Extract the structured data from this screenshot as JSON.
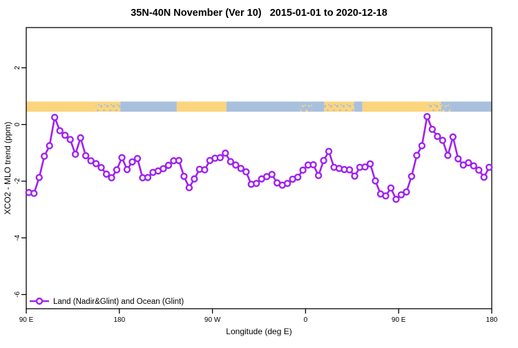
{
  "chart_data": {
    "type": "line",
    "title": "35N-40N November (Ver 10)   2015-01-01 to 2020-12-18",
    "xlabel": "Longitude (deg E)",
    "ylabel": "XCO2 - MLO trend (ppm)",
    "grid": false,
    "xlim": [
      90,
      540
    ],
    "ylim": [
      -6.5,
      3.42
    ],
    "x_ticks": [
      {
        "value": 90,
        "label": "90 E"
      },
      {
        "value": 180,
        "label": "180"
      },
      {
        "value": 270,
        "label": "90 W"
      },
      {
        "value": 360,
        "label": "0"
      },
      {
        "value": 450,
        "label": "90 E"
      },
      {
        "value": 540,
        "label": "180"
      }
    ],
    "y_ticks": [
      {
        "value": 2,
        "label": "2"
      },
      {
        "value": 0,
        "label": "0"
      },
      {
        "value": -2,
        "label": "-2"
      },
      {
        "value": -4,
        "label": "-4"
      },
      {
        "value": -6,
        "label": "-6"
      }
    ],
    "legend": {
      "label": "Land (Nadir&Glint) and Ocean (Glint)",
      "position": "bottom-left",
      "marker": "open-circle"
    },
    "colors": {
      "series": "#A020F0",
      "band_land": "#FBD57E",
      "band_ocean": "#A9C0DD",
      "axis": "#000000"
    },
    "surface_band": {
      "v_top": 0.81,
      "v_bottom": 0.45,
      "segments": [
        {
          "from": 90,
          "to": 157,
          "type": "land"
        },
        {
          "from": 157,
          "to": 181,
          "type": "mixed_land"
        },
        {
          "from": 181,
          "to": 235.5,
          "type": "ocean"
        },
        {
          "from": 235.5,
          "to": 283.5,
          "type": "land"
        },
        {
          "from": 283.5,
          "to": 355,
          "type": "ocean"
        },
        {
          "from": 355,
          "to": 366,
          "type": "mixed_ocean"
        },
        {
          "from": 366,
          "to": 378,
          "type": "ocean"
        },
        {
          "from": 378,
          "to": 407,
          "type": "mixed_land"
        },
        {
          "from": 407,
          "to": 415,
          "type": "ocean"
        },
        {
          "from": 415,
          "to": 478.5,
          "type": "land"
        },
        {
          "from": 478.5,
          "to": 491,
          "type": "mixed_land"
        },
        {
          "from": 491,
          "to": 500,
          "type": "mixed_ocean"
        },
        {
          "from": 500,
          "to": 540,
          "type": "ocean"
        }
      ]
    },
    "series": [
      {
        "name": "Land (Nadir&Glint) and Ocean (Glint)",
        "color": "#A020F0",
        "x": [
          92.5,
          97.5,
          102.5,
          107.5,
          112.5,
          117.5,
          122.5,
          127.5,
          132.5,
          137.5,
          142.5,
          147.5,
          152.5,
          157.5,
          162.5,
          167.5,
          172.5,
          177.5,
          182.5,
          187.5,
          192.5,
          197.5,
          202.5,
          207.5,
          212.5,
          217.5,
          222.5,
          227.5,
          232.5,
          237.5,
          242.5,
          247.5,
          252.5,
          257.5,
          262.5,
          267.5,
          272.5,
          277.5,
          282.5,
          287.5,
          292.5,
          297.5,
          302.5,
          307.5,
          312.5,
          317.5,
          322.5,
          327.5,
          332.5,
          337.5,
          342.5,
          347.5,
          352.5,
          357.5,
          362.5,
          367.5,
          372.5,
          377.5,
          382.5,
          387.5,
          392.5,
          397.5,
          402.5,
          407.5,
          412.5,
          417.5,
          422.5,
          427.5,
          432.5,
          437.5,
          442.5,
          447.5,
          452.5,
          457.5,
          462.5,
          467.5,
          472.5,
          477.5,
          482.5,
          487.5,
          492.5,
          497.5,
          502.5,
          507.5,
          512.5,
          517.5,
          522.5,
          527.5,
          532.5,
          537.5
        ],
        "values": [
          -2.4,
          -2.43,
          -1.87,
          -1.12,
          -0.75,
          0.25,
          -0.22,
          -0.38,
          -0.53,
          -1.05,
          -0.47,
          -1.1,
          -1.28,
          -1.38,
          -1.52,
          -1.75,
          -1.88,
          -1.6,
          -1.17,
          -1.59,
          -1.32,
          -1.2,
          -1.88,
          -1.87,
          -1.69,
          -1.64,
          -1.56,
          -1.44,
          -1.28,
          -1.27,
          -1.83,
          -2.23,
          -1.92,
          -1.58,
          -1.6,
          -1.27,
          -1.19,
          -1.17,
          -1.01,
          -1.31,
          -1.43,
          -1.55,
          -1.67,
          -2.11,
          -2.08,
          -1.92,
          -1.84,
          -1.76,
          -2.06,
          -2.14,
          -2.08,
          -1.93,
          -1.86,
          -1.61,
          -1.43,
          -1.42,
          -1.8,
          -1.27,
          -0.95,
          -1.51,
          -1.55,
          -1.59,
          -1.6,
          -1.82,
          -1.51,
          -1.5,
          -1.39,
          -1.99,
          -2.45,
          -2.52,
          -2.24,
          -2.64,
          -2.48,
          -2.38,
          -1.83,
          -1.09,
          -0.75,
          0.28,
          -0.17,
          -0.42,
          -0.56,
          -1.09,
          -0.44,
          -1.21,
          -1.43,
          -1.35,
          -1.46,
          -1.61,
          -1.86,
          -1.51
        ]
      }
    ]
  }
}
